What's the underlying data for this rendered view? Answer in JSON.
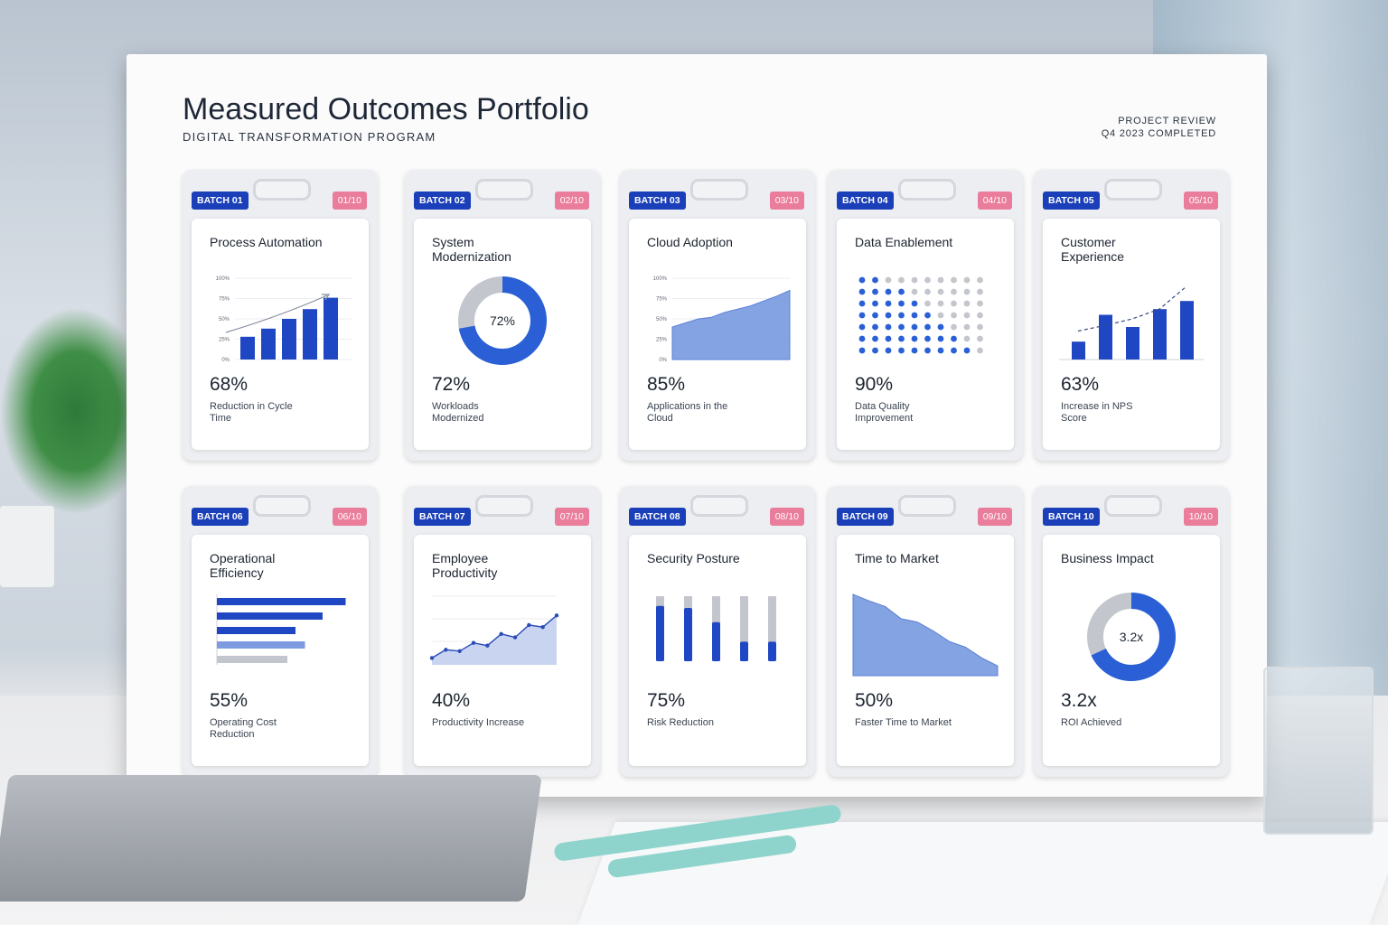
{
  "header": {
    "title": "Measured Outcomes Portfolio",
    "subtitle": "DIGITAL TRANSFORMATION PROGRAM",
    "review": "PROJECT REVIEW",
    "status": "Q4 2023 COMPLETED"
  },
  "cards": [
    {
      "batch": "BATCH 01",
      "index": "01/10",
      "title": "Process Automation",
      "metric": "68%",
      "caption": "Reduction in Cycle Time",
      "chart": {
        "type": "bar",
        "values": [
          28,
          38,
          50,
          62,
          76
        ],
        "ylim": [
          0,
          100
        ],
        "yticks": [
          {
            "value": 100,
            "label": "100%"
          },
          {
            "value": 75,
            "label": "75%"
          },
          {
            "value": 50,
            "label": "50%"
          },
          {
            "value": 25,
            "label": "25%"
          },
          {
            "value": 0,
            "label": "0%"
          }
        ]
      }
    },
    {
      "batch": "BATCH 02",
      "index": "02/10",
      "title": "System Modernization",
      "metric": "72%",
      "caption": "Workloads Modernized",
      "chart": {
        "type": "donut",
        "value": 72,
        "center_label": "72%"
      }
    },
    {
      "batch": "BATCH 03",
      "index": "03/10",
      "title": "Cloud Adoption",
      "metric": "85%",
      "caption": "Applications in the Cloud",
      "chart": {
        "type": "area",
        "values": [
          40,
          45,
          50,
          52,
          58,
          62,
          66,
          72,
          78,
          85
        ],
        "ylim": [
          0,
          100
        ],
        "yticks": [
          {
            "value": 100,
            "label": "100%"
          },
          {
            "value": 75,
            "label": "75%"
          },
          {
            "value": 50,
            "label": "50%"
          },
          {
            "value": 25,
            "label": "25%"
          },
          {
            "value": 0,
            "label": "0%"
          }
        ]
      }
    },
    {
      "batch": "BATCH 04",
      "index": "04/10",
      "title": "Data Enablement",
      "metric": "90%",
      "caption": "Data Quality Improvement",
      "chart": {
        "type": "dots",
        "rows": 7,
        "filled": [
          7,
          7,
          6,
          6,
          5,
          4,
          3,
          2,
          1,
          0
        ]
      }
    },
    {
      "batch": "BATCH 05",
      "index": "05/10",
      "title": "Customer Experience",
      "metric": "63%",
      "caption": "Increase in NPS Score",
      "chart": {
        "type": "bar-trend",
        "values": [
          22,
          55,
          40,
          62,
          72
        ],
        "trend": [
          35,
          42,
          50,
          62,
          90
        ],
        "ylim": [
          0,
          100
        ]
      }
    },
    {
      "batch": "BATCH 06",
      "index": "06/10",
      "title": "Operational Efficiency",
      "metric": "55%",
      "caption": "Operating Cost Reduction",
      "chart": {
        "type": "hbar",
        "values": [
          95,
          78,
          58,
          65,
          52
        ],
        "colors": [
          "#1f47c4",
          "#1f47c4",
          "#1f47c4",
          "#7f9be0",
          "#c3c6cc"
        ],
        "xlim": [
          0,
          100
        ]
      }
    },
    {
      "batch": "BATCH 07",
      "index": "07/10",
      "title": "Employee Productivity",
      "metric": "40%",
      "caption": "Productivity Increase",
      "chart": {
        "type": "line-area",
        "values": [
          10,
          22,
          20,
          32,
          28,
          45,
          40,
          58,
          55,
          72
        ],
        "ylim": [
          0,
          100
        ]
      }
    },
    {
      "batch": "BATCH 08",
      "index": "08/10",
      "title": "Security Posture",
      "metric": "75%",
      "caption": "Risk Reduction",
      "chart": {
        "type": "progress",
        "values": [
          85,
          82,
          60,
          30,
          30
        ],
        "ylim": [
          0,
          100
        ]
      }
    },
    {
      "batch": "BATCH 09",
      "index": "09/10",
      "title": "Time to Market",
      "metric": "50%",
      "caption": "Faster Time to Market",
      "chart": {
        "type": "area-down",
        "values": [
          100,
          92,
          85,
          70,
          66,
          55,
          42,
          35,
          22,
          12
        ],
        "ylim": [
          0,
          100
        ]
      }
    },
    {
      "batch": "BATCH 10",
      "index": "10/10",
      "title": "Business Impact",
      "metric": "3.2x",
      "caption": "ROI Achieved",
      "chart": {
        "type": "donut",
        "value": 68,
        "center_label": "3.2x"
      }
    }
  ]
}
